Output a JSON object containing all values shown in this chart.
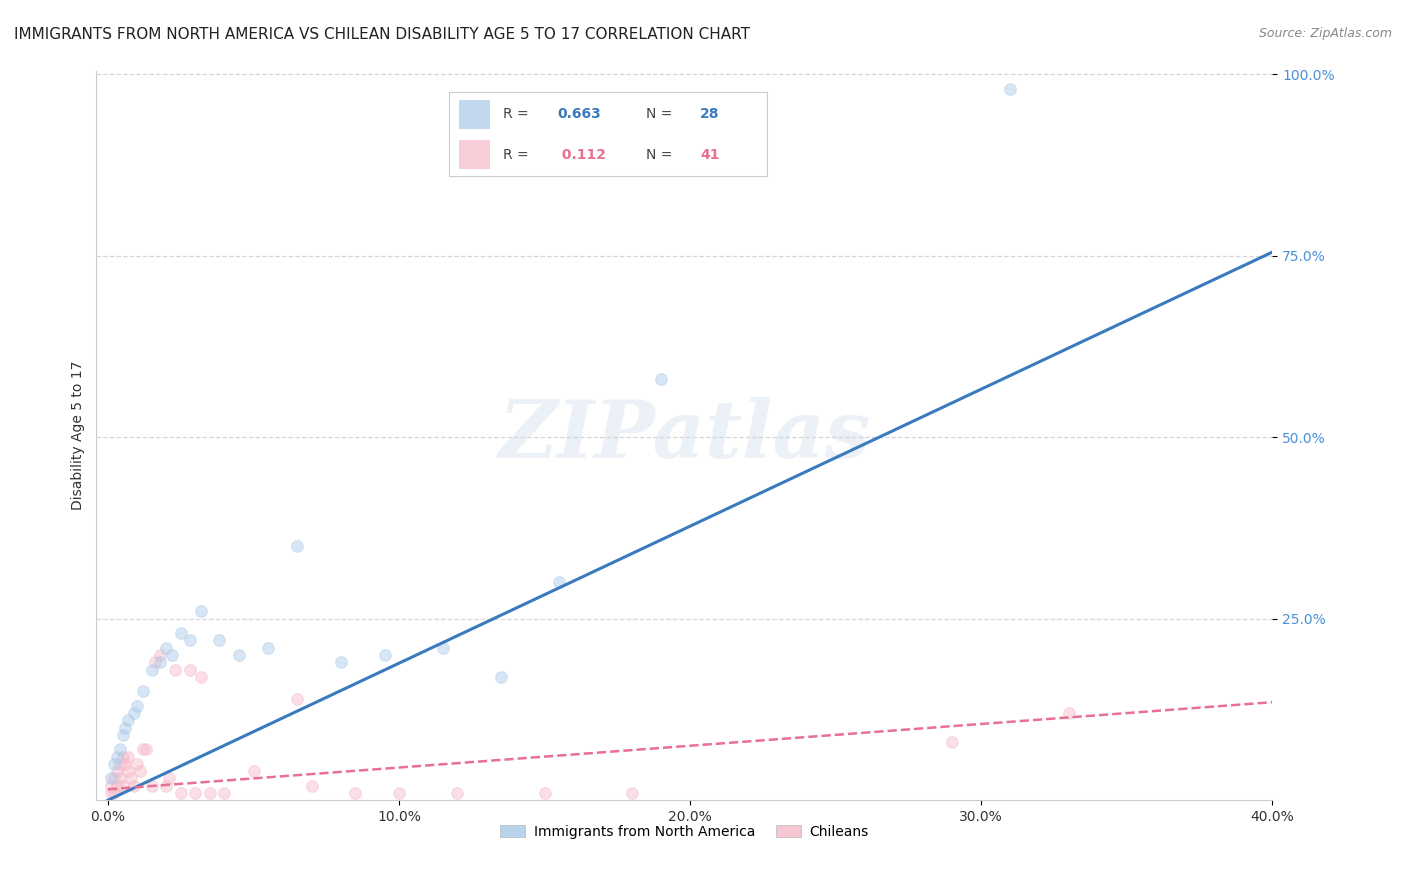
{
  "title": "IMMIGRANTS FROM NORTH AMERICA VS CHILEAN DISABILITY AGE 5 TO 17 CORRELATION CHART",
  "source": "Source: ZipAtlas.com",
  "ylabel": "Disability Age 5 to 17",
  "xlim": [
    0.0,
    0.4
  ],
  "ylim": [
    0.0,
    1.0
  ],
  "xticks": [
    0.0,
    0.1,
    0.2,
    0.3,
    0.4
  ],
  "yticks": [
    0.25,
    0.5,
    0.75,
    1.0
  ],
  "xtick_labels": [
    "0.0%",
    "10.0%",
    "20.0%",
    "30.0%",
    "40.0%"
  ],
  "ytick_labels": [
    "25.0%",
    "50.0%",
    "75.0%",
    "100.0%"
  ],
  "blue_color": "#a8c8e8",
  "pink_color": "#f4b8c8",
  "blue_line_color": "#3a7abf",
  "pink_line_color": "#e87090",
  "legend_blue_R": "0.663",
  "legend_blue_N": "28",
  "legend_pink_R": "0.112",
  "legend_pink_N": "41",
  "legend_label_blue": "Immigrants from North America",
  "legend_label_pink": "Chileans",
  "watermark": "ZIPatlas",
  "blue_scatter_x": [
    0.001,
    0.002,
    0.003,
    0.004,
    0.005,
    0.006,
    0.007,
    0.009,
    0.01,
    0.012,
    0.015,
    0.018,
    0.02,
    0.022,
    0.025,
    0.028,
    0.032,
    0.038,
    0.045,
    0.055,
    0.065,
    0.08,
    0.095,
    0.115,
    0.135,
    0.155,
    0.19,
    0.31
  ],
  "blue_scatter_y": [
    0.03,
    0.05,
    0.06,
    0.07,
    0.09,
    0.1,
    0.11,
    0.12,
    0.13,
    0.15,
    0.18,
    0.19,
    0.21,
    0.2,
    0.23,
    0.22,
    0.26,
    0.22,
    0.2,
    0.21,
    0.35,
    0.19,
    0.2,
    0.21,
    0.17,
    0.3,
    0.58,
    0.98
  ],
  "pink_scatter_x": [
    0.001,
    0.001,
    0.002,
    0.002,
    0.003,
    0.003,
    0.004,
    0.004,
    0.005,
    0.005,
    0.006,
    0.007,
    0.007,
    0.008,
    0.009,
    0.01,
    0.011,
    0.012,
    0.013,
    0.015,
    0.016,
    0.018,
    0.02,
    0.021,
    0.023,
    0.025,
    0.028,
    0.03,
    0.032,
    0.035,
    0.04,
    0.05,
    0.065,
    0.07,
    0.085,
    0.1,
    0.12,
    0.15,
    0.18,
    0.29,
    0.33
  ],
  "pink_scatter_y": [
    0.01,
    0.02,
    0.01,
    0.03,
    0.02,
    0.04,
    0.03,
    0.05,
    0.02,
    0.06,
    0.05,
    0.04,
    0.06,
    0.03,
    0.02,
    0.05,
    0.04,
    0.07,
    0.07,
    0.02,
    0.19,
    0.2,
    0.02,
    0.03,
    0.18,
    0.01,
    0.18,
    0.01,
    0.17,
    0.01,
    0.01,
    0.04,
    0.14,
    0.02,
    0.01,
    0.01,
    0.01,
    0.01,
    0.01,
    0.08,
    0.12
  ],
  "blue_line_x": [
    0.0,
    0.4
  ],
  "blue_line_y": [
    0.0,
    0.755
  ],
  "pink_line_x": [
    0.0,
    0.4
  ],
  "pink_line_y": [
    0.015,
    0.135
  ],
  "background_color": "#ffffff",
  "grid_color": "#cccccc",
  "title_fontsize": 11,
  "axis_label_fontsize": 10,
  "tick_fontsize": 10,
  "scatter_size": 70,
  "scatter_alpha": 0.45,
  "right_tick_color": "#4a90d9"
}
